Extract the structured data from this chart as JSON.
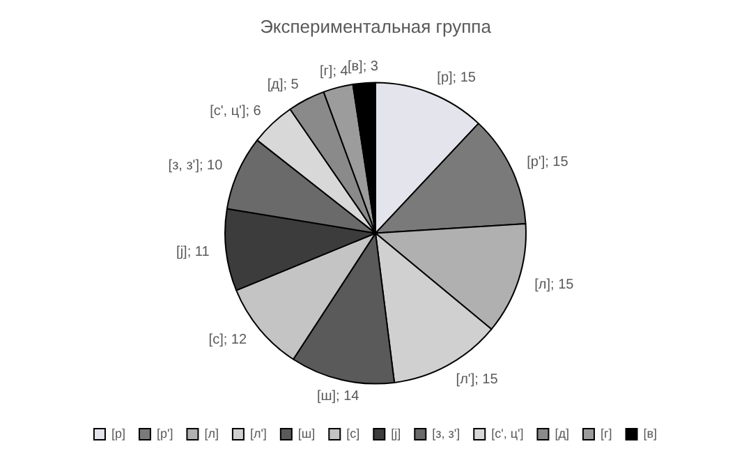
{
  "chart_data": {
    "type": "pie",
    "title": "Экспериментальная группа",
    "categories": [
      "[р]",
      "[р']",
      "[л]",
      "[л']",
      "[ш]",
      "[с]",
      "[j]",
      "[з, з']",
      "[с', ц']",
      "[д]",
      "[г]",
      "[в]"
    ],
    "values": [
      15,
      15,
      15,
      15,
      14,
      12,
      11,
      10,
      6,
      5,
      4,
      3
    ],
    "value_labels": [
      "[р]; 15",
      "[р']; 15",
      "[л]; 15",
      "[л']; 15",
      "[ш]; 14",
      "[с]; 12",
      "[j]; 11",
      "[з, з']; 10",
      "[с', ц']; 6",
      "[д]; 5",
      "[г]; 4",
      "[в]; 3"
    ],
    "colors": [
      "#e4e4ec",
      "#7a7a7a",
      "#b0b0b0",
      "#d0d0d0",
      "#5a5a5a",
      "#c4c4c4",
      "#3c3c3c",
      "#6a6a6a",
      "#d8d8d8",
      "#8a8a8a",
      "#9c9c9c",
      "#000000"
    ],
    "legend": "bottom"
  }
}
